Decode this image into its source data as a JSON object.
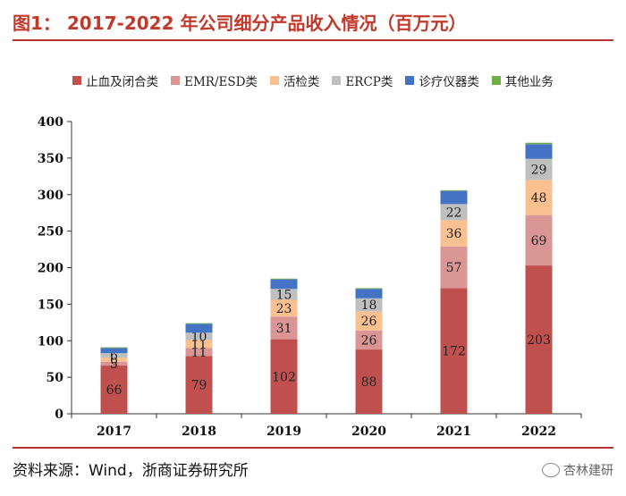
{
  "figure": {
    "title": "图1： 2017-2022 年公司细分产品收入情况（百万元）",
    "source": "资料来源：Wind，浙商证券研究所",
    "watermark": "杏林建研"
  },
  "chart_data": {
    "type": "bar",
    "stacked": true,
    "categories": [
      "2017",
      "2018",
      "2019",
      "2020",
      "2021",
      "2022"
    ],
    "ylim": [
      0,
      400
    ],
    "yticks": [
      0,
      50,
      100,
      150,
      200,
      250,
      300,
      350,
      400
    ],
    "legend_position": "top",
    "series": [
      {
        "name": "止血及闭合类",
        "color": "#c0504d",
        "values": [
          66,
          79,
          102,
          88,
          172,
          203
        ],
        "labels": [
          "66",
          "79",
          "102",
          "88",
          "172",
          "203"
        ]
      },
      {
        "name": "EMR/ESD类",
        "color": "#d99694",
        "values": [
          5,
          11,
          31,
          26,
          57,
          69
        ],
        "labels": [
          "5",
          "11",
          "31",
          "26",
          "57",
          "69"
        ]
      },
      {
        "name": "活检类",
        "color": "#fac090",
        "values": [
          6,
          11,
          23,
          26,
          36,
          48
        ],
        "labels": [
          "6",
          "11",
          "23",
          "26",
          "36",
          "48"
        ]
      },
      {
        "name": "ERCP类",
        "color": "#bfbfbf",
        "values": [
          6,
          10,
          15,
          18,
          22,
          29
        ],
        "labels": [
          "6",
          "10",
          "15",
          "18",
          "22",
          "29"
        ]
      },
      {
        "name": "诊疗仪器类",
        "color": "#4472c4",
        "values": [
          7,
          12,
          13,
          13,
          18,
          20
        ],
        "labels": [
          "",
          "",
          "",
          "",
          "",
          ""
        ]
      },
      {
        "name": "其他业务",
        "color": "#70ad47",
        "values": [
          1,
          1,
          1,
          1,
          1,
          2
        ],
        "labels": [
          "",
          "",
          "",
          "",
          "",
          ""
        ]
      }
    ]
  }
}
